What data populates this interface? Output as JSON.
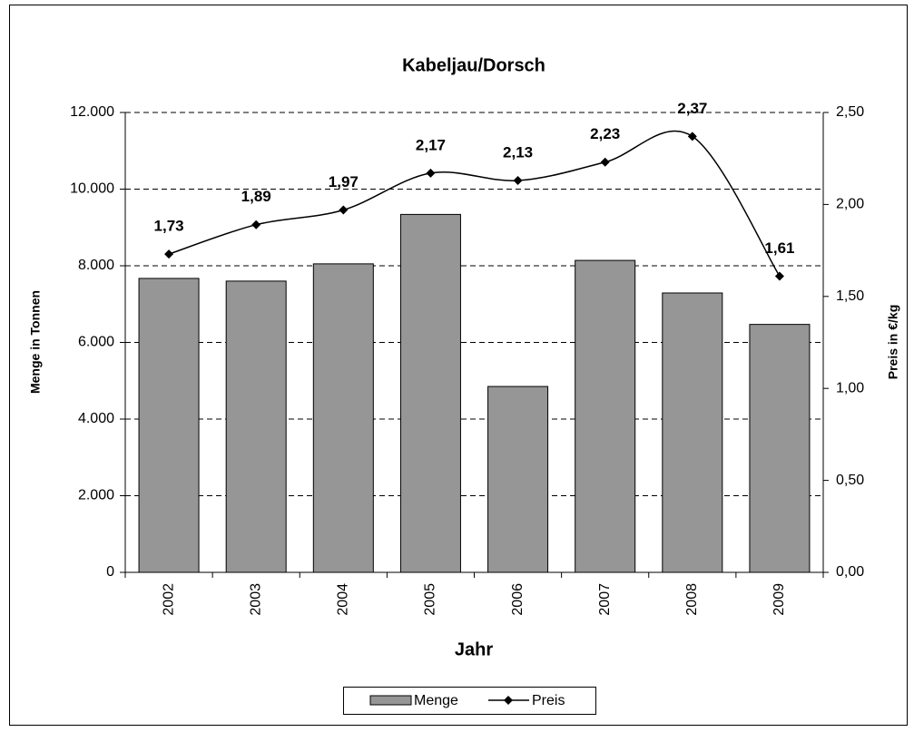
{
  "chart_data": {
    "type": "bar_line",
    "title": "Kabeljau/Dorsch",
    "x_label": "Jahr",
    "y_label": "Menge in Tonnen",
    "y2_label": "Preis in €/kg",
    "categories": [
      "2002",
      "2003",
      "2004",
      "2005",
      "2006",
      "2007",
      "2008",
      "2009"
    ],
    "series": [
      {
        "name": "Menge",
        "type": "bar",
        "color": "#969696",
        "values": [
          7670,
          7600,
          8050,
          9340,
          4850,
          8140,
          7290,
          6470
        ]
      },
      {
        "name": "Preis",
        "type": "line",
        "axis": "y2",
        "color": "#000000",
        "values": [
          1.73,
          1.89,
          1.97,
          2.17,
          2.13,
          2.23,
          2.37,
          1.61
        ],
        "value_labels": [
          "1,73",
          "1,89",
          "1,97",
          "2,17",
          "2,13",
          "2,23",
          "2,37",
          "1,61"
        ]
      }
    ],
    "ylim": [
      0,
      12000
    ],
    "yticks": [
      0,
      {
        "value": 2000,
        "label": "2.000"
      },
      {
        "value": 4000,
        "label": "4.000"
      },
      {
        "value": 6000,
        "label": "6.000"
      },
      {
        "value": 8000,
        "label": "8.000"
      },
      {
        "value": 10000,
        "label": "10.000"
      },
      {
        "value": 12000,
        "label": "12.000"
      }
    ],
    "y2lim": [
      0,
      2.5
    ],
    "y2ticks": [
      {
        "value": 0,
        "label": "0,00"
      },
      {
        "value": 0.5,
        "label": "0,50"
      },
      {
        "value": 1,
        "label": "1,00"
      },
      {
        "value": 1.5,
        "label": "1,50"
      },
      {
        "value": 2,
        "label": "2,00"
      },
      {
        "value": 2.5,
        "label": "2,50"
      }
    ],
    "grid": true,
    "legend": "bottom"
  }
}
